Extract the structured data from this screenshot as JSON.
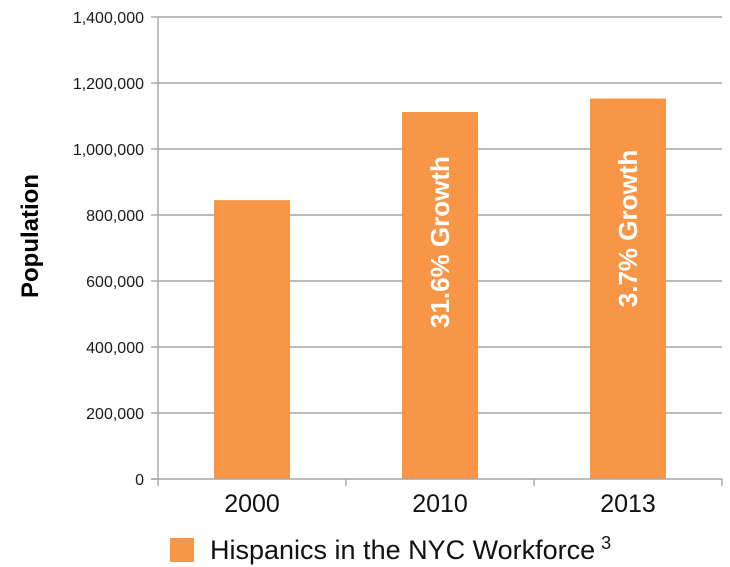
{
  "chart_data": {
    "type": "bar",
    "categories": [
      "2000",
      "2010",
      "2013"
    ],
    "series": [
      {
        "name": "Hispanics in the NYC Workforce",
        "values": [
          845000,
          1112000,
          1153000
        ],
        "bar_labels": [
          "",
          "31.6% Growth",
          "3.7% Growth"
        ],
        "color": "#F79646"
      }
    ],
    "ylabel": "Population",
    "xlabel": "",
    "ylim": [
      0,
      1400000
    ],
    "yticks": [
      0,
      200000,
      400000,
      600000,
      800000,
      1000000,
      1200000,
      1400000
    ],
    "ytick_labels": [
      "0",
      "200,000",
      "400,000",
      "600,000",
      "800,000",
      "1,000,000",
      "1,200,000",
      "1,400,000"
    ],
    "grid": true,
    "gridline_color": "#a6a6a6",
    "legend": {
      "placement": "bottom",
      "label": "Hispanics in the NYC Workforce",
      "superscript": "3"
    }
  }
}
